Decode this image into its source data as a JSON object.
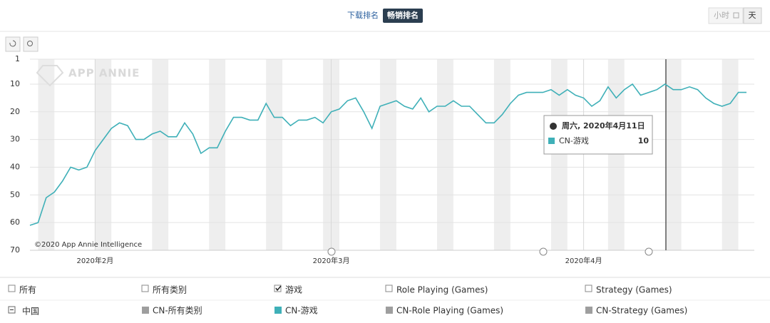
{
  "ui": {
    "tabs": [
      "下载排名",
      "畅销排名"
    ],
    "granularity": [
      "小时",
      "天"
    ],
    "watermark": "APP ANNIE",
    "copyright": "©2020 App Annie Intelligence",
    "tooltip": {
      "date": "周六, 2020年4月11日"
    },
    "filters": [
      "所有",
      "所有类别",
      "游戏",
      "Role Playing (Games)",
      "Strategy (Games)"
    ],
    "country": "中国",
    "legend_other": [
      "CN-所有类别",
      "CN-Role Playing (Games)",
      "CN-Strategy (Games)"
    ]
  },
  "chart_data": {
    "type": "line",
    "x": [
      "2020-01-24",
      "2020-01-25",
      "2020-01-26",
      "2020-01-27",
      "2020-01-28",
      "2020-01-29",
      "2020-01-30",
      "2020-01-31",
      "2020-02-01",
      "2020-02-02",
      "2020-02-03",
      "2020-02-04",
      "2020-02-05",
      "2020-02-06",
      "2020-02-07",
      "2020-02-08",
      "2020-02-09",
      "2020-02-10",
      "2020-02-11",
      "2020-02-12",
      "2020-02-13",
      "2020-02-14",
      "2020-02-15",
      "2020-02-16",
      "2020-02-17",
      "2020-02-18",
      "2020-02-19",
      "2020-02-20",
      "2020-02-21",
      "2020-02-22",
      "2020-02-23",
      "2020-02-24",
      "2020-02-25",
      "2020-02-26",
      "2020-02-27",
      "2020-02-28",
      "2020-02-29",
      "2020-03-01",
      "2020-03-02",
      "2020-03-03",
      "2020-03-04",
      "2020-03-05",
      "2020-03-06",
      "2020-03-07",
      "2020-03-08",
      "2020-03-09",
      "2020-03-10",
      "2020-03-11",
      "2020-03-12",
      "2020-03-13",
      "2020-03-14",
      "2020-03-15",
      "2020-03-16",
      "2020-03-17",
      "2020-03-18",
      "2020-03-19",
      "2020-03-20",
      "2020-03-21",
      "2020-03-22",
      "2020-03-23",
      "2020-03-24",
      "2020-03-25",
      "2020-03-26",
      "2020-03-27",
      "2020-03-28",
      "2020-03-29",
      "2020-03-30",
      "2020-03-31",
      "2020-04-01",
      "2020-04-02",
      "2020-04-03",
      "2020-04-04",
      "2020-04-05",
      "2020-04-06",
      "2020-04-07",
      "2020-04-08",
      "2020-04-09",
      "2020-04-10",
      "2020-04-11",
      "2020-04-12",
      "2020-04-13",
      "2020-04-14",
      "2020-04-15",
      "2020-04-16",
      "2020-04-17",
      "2020-04-18",
      "2020-04-19",
      "2020-04-20",
      "2020-04-21"
    ],
    "series": [
      {
        "name": "CN-游戏",
        "color": "#3fb0b8",
        "values": [
          61,
          60,
          51,
          49,
          45,
          40,
          41,
          40,
          34,
          30,
          26,
          24,
          25,
          30,
          30,
          28,
          27,
          29,
          29,
          24,
          28,
          35,
          33,
          33,
          27,
          22,
          22,
          23,
          23,
          17,
          22,
          22,
          25,
          23,
          23,
          22,
          24,
          20,
          19,
          16,
          15,
          20,
          26,
          18,
          17,
          16,
          18,
          19,
          15,
          20,
          18,
          18,
          16,
          18,
          18,
          21,
          24,
          24,
          21,
          17,
          14,
          13,
          13,
          13,
          12,
          14,
          12,
          14,
          15,
          18,
          16,
          11,
          15,
          12,
          10,
          14,
          13,
          12,
          10,
          12,
          12,
          11,
          12,
          15,
          17,
          18,
          17,
          13,
          13
        ]
      }
    ],
    "xlim": [
      "2020-01-24",
      "2020-04-21"
    ],
    "xticks": [
      {
        "value": "2020-02-01",
        "label": "2020年2月"
      },
      {
        "value": "2020-03-01",
        "label": "2020年3月"
      },
      {
        "value": "2020-04-01",
        "label": "2020年4月"
      }
    ],
    "ylim": [
      1,
      70
    ],
    "y_reversed": true,
    "yticks": [
      1,
      10,
      20,
      30,
      40,
      50,
      60,
      70
    ],
    "grid": true
  }
}
